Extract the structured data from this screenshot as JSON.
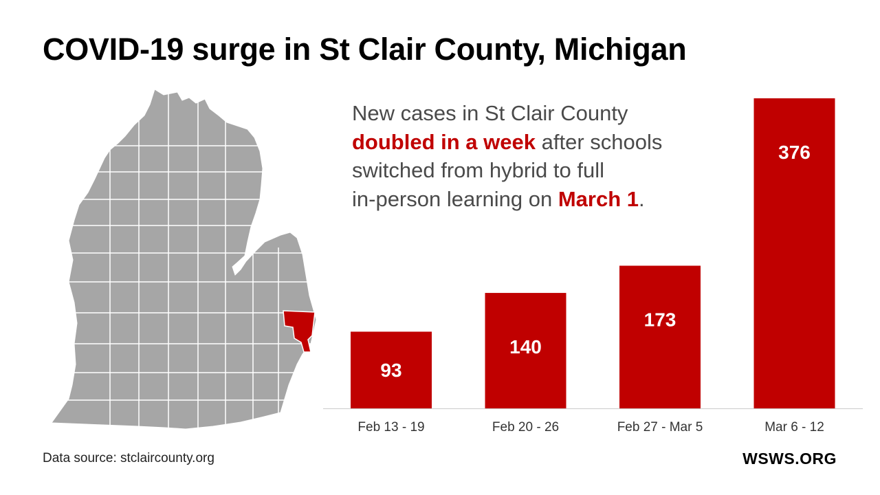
{
  "title": "COVID-19 surge in St Clair County, Michigan",
  "blurb": {
    "line1": "New cases in St Clair County",
    "highlight1": "doubled in a week",
    "line2_rest": " after schools",
    "line3": "switched from hybrid to full",
    "line4_start": "in-person learning on ",
    "highlight2": "March 1",
    "line4_end": "."
  },
  "source": "Data source: stclaircounty.org",
  "logo": "WSWS.ORG",
  "colors": {
    "accent": "#c00000",
    "map_fill": "#a6a6a6",
    "map_border": "#ffffff",
    "text_gray": "#4a4a4a"
  },
  "chart_data": {
    "type": "bar",
    "categories": [
      "Feb 13 - 19",
      "Feb 20 - 26",
      "Feb 27 - Mar 5",
      "Mar 6 - 12"
    ],
    "values": [
      93,
      140,
      173,
      376
    ],
    "title": "",
    "xlabel": "",
    "ylabel": "",
    "ylim": [
      0,
      376
    ],
    "data_labels": true,
    "grid": false
  }
}
